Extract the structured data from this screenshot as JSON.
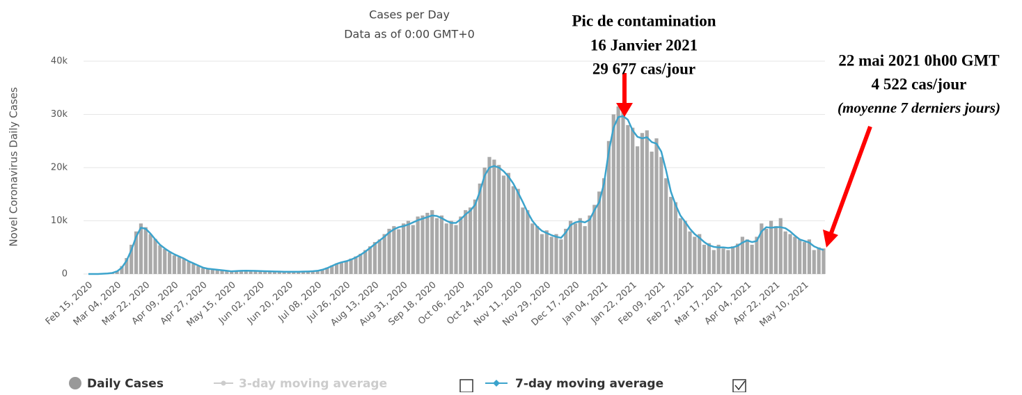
{
  "chart_data": {
    "type": "bar_line",
    "title": "Cases per Day",
    "subtitle": "Data as of 0:00 GMT+0",
    "y_label": "Novel Coronavirus Daily Cases",
    "categories": [
      "Feb 15, 2020",
      null,
      null,
      null,
      null,
      null,
      "Mar 04, 2020",
      null,
      null,
      null,
      null,
      null,
      "Mar 22, 2020",
      null,
      null,
      null,
      null,
      null,
      "Apr 09, 2020",
      null,
      null,
      null,
      null,
      null,
      "Apr 27, 2020",
      null,
      null,
      null,
      null,
      null,
      "May 15, 2020",
      null,
      null,
      null,
      null,
      null,
      "Jun 02, 2020",
      null,
      null,
      null,
      null,
      null,
      "Jun 20, 2020",
      null,
      null,
      null,
      null,
      null,
      "Jul 08, 2020",
      null,
      null,
      null,
      null,
      null,
      "Jul 26, 2020",
      null,
      null,
      null,
      null,
      null,
      "Aug 13, 2020",
      null,
      null,
      null,
      null,
      null,
      "Aug 31, 2020",
      null,
      null,
      null,
      null,
      null,
      "Sep 18, 2020",
      null,
      null,
      null,
      null,
      null,
      "Oct 06, 2020",
      null,
      null,
      null,
      null,
      null,
      "Oct 24, 2020",
      null,
      null,
      null,
      null,
      null,
      "Nov 11, 2020",
      null,
      null,
      null,
      null,
      null,
      "Nov 29, 2020",
      null,
      null,
      null,
      null,
      null,
      "Dec 17, 2020",
      null,
      null,
      null,
      null,
      null,
      "Jan 04, 2021",
      null,
      null,
      null,
      null,
      null,
      "Jan 22, 2021",
      null,
      null,
      null,
      null,
      null,
      "Feb 09, 2021",
      null,
      null,
      null,
      null,
      null,
      "Feb 27, 2021",
      null,
      null,
      null,
      null,
      null,
      "Mar 17, 2021",
      null,
      null,
      null,
      null,
      null,
      "Apr 04, 2021",
      null,
      null,
      null,
      null,
      null,
      "Apr 22, 2021",
      null,
      null,
      null,
      null,
      null,
      "May 10, 2021",
      null,
      null,
      null,
      null
    ],
    "series": [
      {
        "name": "Daily Cases",
        "color": "#a9a9a9",
        "kind": "bar",
        "values": [
          0,
          0,
          0,
          100,
          100,
          300,
          600,
          1500,
          3000,
          5500,
          8000,
          9500,
          8800,
          7500,
          6600,
          5400,
          4700,
          4100,
          3500,
          3200,
          2800,
          2300,
          1900,
          1500,
          1100,
          950,
          850,
          750,
          650,
          550,
          450,
          600,
          650,
          600,
          550,
          600,
          500,
          550,
          450,
          500,
          400,
          450,
          400,
          450,
          400,
          500,
          450,
          550,
          650,
          900,
          1200,
          1600,
          2000,
          2200,
          2500,
          2900,
          3300,
          3800,
          4500,
          5200,
          6000,
          6500,
          7500,
          8500,
          9000,
          8400,
          9500,
          10000,
          9200,
          10800,
          11000,
          11500,
          12000,
          10500,
          11000,
          9500,
          10000,
          9200,
          10800,
          12000,
          12500,
          14000,
          17000,
          20000,
          22000,
          21500,
          20500,
          18500,
          19000,
          16500,
          16000,
          12500,
          12000,
          9500,
          9000,
          7500,
          8200,
          7000,
          7500,
          6500,
          8500,
          10000,
          9500,
          10500,
          9000,
          11000,
          13000,
          15500,
          18000,
          25000,
          30000,
          31500,
          31000,
          28000,
          27500,
          24000,
          26500,
          27000,
          23000,
          25500,
          22000,
          18000,
          14500,
          13500,
          10500,
          10000,
          8000,
          7000,
          7500,
          5500,
          5800,
          4500,
          5500,
          4800,
          4500,
          5200,
          5700,
          7000,
          6500,
          5500,
          7000,
          9500,
          8500,
          10000,
          9000,
          10500,
          8000,
          7500,
          7000,
          6500,
          6000,
          6500,
          4500,
          5000,
          4800
        ]
      },
      {
        "name": "3-day moving average",
        "color": "#cccccc",
        "kind": "line",
        "visible": false
      },
      {
        "name": "7-day moving average",
        "color": "#3ba3cc",
        "kind": "line",
        "visible": true,
        "values": [
          0,
          0,
          0,
          50,
          100,
          200,
          500,
          1200,
          2500,
          4500,
          7000,
          8700,
          8500,
          7600,
          6500,
          5500,
          4800,
          4200,
          3700,
          3300,
          2900,
          2400,
          2000,
          1600,
          1200,
          1000,
          900,
          800,
          700,
          600,
          500,
          550,
          600,
          620,
          600,
          580,
          550,
          520,
          500,
          480,
          450,
          430,
          420,
          420,
          430,
          450,
          480,
          520,
          600,
          800,
          1100,
          1500,
          1900,
          2200,
          2400,
          2700,
          3100,
          3600,
          4200,
          4900,
          5600,
          6300,
          7000,
          7800,
          8400,
          8800,
          9000,
          9300,
          9700,
          10100,
          10400,
          10700,
          11000,
          10900,
          10500,
          10000,
          9600,
          9600,
          10300,
          11200,
          11900,
          13000,
          15500,
          18500,
          20000,
          20300,
          20000,
          19300,
          18300,
          17000,
          15300,
          13500,
          11600,
          10000,
          8900,
          8100,
          7700,
          7300,
          7000,
          6800,
          7800,
          9200,
          9700,
          9900,
          9700,
          10200,
          12000,
          13500,
          17000,
          23000,
          27500,
          29500,
          29677,
          29000,
          27000,
          25800,
          25500,
          25700,
          24800,
          24500,
          23000,
          19500,
          15500,
          13000,
          11000,
          9800,
          8500,
          7500,
          6800,
          6000,
          5400,
          5100,
          5000,
          5000,
          4900,
          5000,
          5300,
          5900,
          6300,
          6000,
          6200,
          8000,
          8800,
          8700,
          8800,
          8800,
          8600,
          8000,
          7200,
          6500,
          6200,
          5900,
          5200,
          4800,
          4522
        ]
      }
    ],
    "ylim": [
      0,
      40000
    ],
    "yticks": [
      0,
      {
        "value": 10000,
        "label": "10k"
      },
      {
        "value": 20000,
        "label": "20k"
      },
      {
        "value": 30000,
        "label": "30k"
      },
      {
        "value": 40000,
        "label": "40k"
      }
    ],
    "grid": true,
    "legend": "bottom",
    "annotations": [
      [
        "Pic de contamination",
        "16 Janvier 2021",
        "29 677 cas/jour"
      ],
      [
        "22 mai 2021 0h00 GMT",
        "4 522 cas/jour",
        "(moyenne 7 derniers jours)"
      ]
    ]
  }
}
